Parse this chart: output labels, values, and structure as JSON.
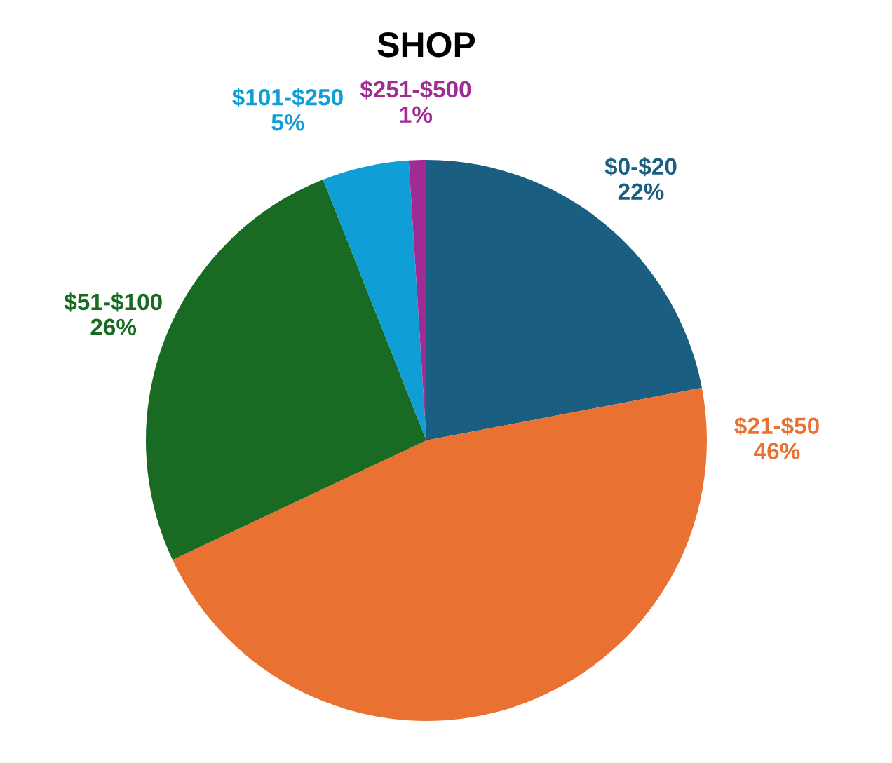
{
  "chart_data": {
    "type": "pie",
    "title": "SHOP",
    "categories": [
      "$0-$20",
      "$21-$50",
      "$51-$100",
      "$101-$250",
      "$251-$500"
    ],
    "values": [
      22,
      46,
      26,
      5,
      1
    ],
    "colors": [
      "#1a5e82",
      "#e97132",
      "#196b24",
      "#0f9ed5",
      "#a02b93"
    ],
    "value_labels": [
      "22%",
      "46%",
      "26%",
      "5%",
      "1%"
    ],
    "legend": false
  }
}
